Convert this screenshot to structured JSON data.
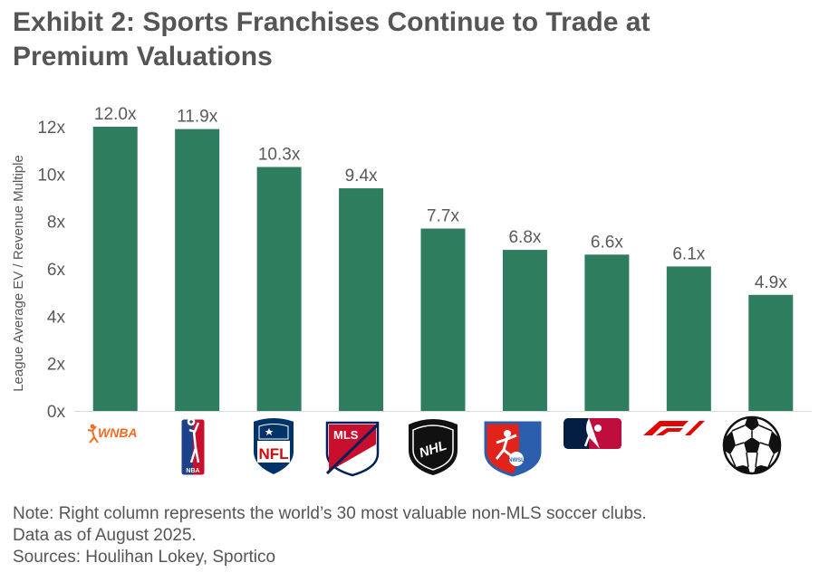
{
  "title_lines": [
    "Exhibit 2: Sports Franchises Continue to Trade at",
    "Premium Valuations"
  ],
  "chart_data": {
    "type": "bar",
    "categories": [
      "WNBA",
      "NBA",
      "NFL",
      "MLS",
      "NHL",
      "NWSL",
      "MLB",
      "F1",
      "Soccer"
    ],
    "values": [
      12.0,
      11.9,
      10.3,
      9.4,
      7.7,
      6.8,
      6.6,
      6.1,
      4.9
    ],
    "data_labels": [
      "12.0x",
      "11.9x",
      "10.3x",
      "9.4x",
      "7.7x",
      "6.8x",
      "6.6x",
      "6.1x",
      "4.9x"
    ],
    "ylabel": "League Average EV / Revenue Multiple",
    "ylim": [
      0,
      12
    ],
    "yticks": [
      0,
      2,
      4,
      6,
      8,
      10,
      12
    ],
    "ytick_labels": [
      "0x",
      "2x",
      "4x",
      "6x",
      "8x",
      "10x",
      "12x"
    ],
    "grid": false,
    "bar_color": "#2e7d5f"
  },
  "logos": {
    "wnba": {
      "text": "WNBA",
      "color": "#f26b21"
    },
    "nba": {
      "text": "NBA",
      "colors": [
        "#1d428a",
        "#c8102e"
      ]
    },
    "nfl": {
      "text": "NFL",
      "colors": [
        "#013369",
        "#d50a0a"
      ]
    },
    "mls": {
      "text": "MLS",
      "colors": [
        "#001f5b",
        "#c8102e"
      ]
    },
    "nhl": {
      "text": "NHL",
      "color": "#111111"
    },
    "nwsl": {
      "text": "NWSL",
      "colors": [
        "#e2231a",
        "#2b5fad"
      ]
    },
    "mlb": {
      "colors": [
        "#041e42",
        "#bf0d3e"
      ]
    },
    "f1": {
      "color": "#e10600"
    },
    "soccer": {
      "color": "#111111"
    }
  },
  "notes": [
    "Note: Right column represents the world’s 30 most valuable non-MLS soccer clubs.",
    "Data as of August 2025.",
    "Sources: Houlihan Lokey, Sportico"
  ]
}
